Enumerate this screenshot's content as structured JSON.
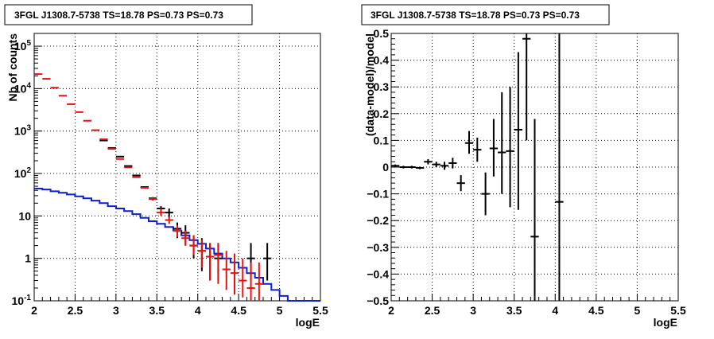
{
  "colors": {
    "data": "#000000",
    "model_total": "#e8110d",
    "model_source": "#0b20d0",
    "grid": "#000000"
  },
  "chart_data": [
    {
      "type": "line",
      "title": "3FGL J1308.7-5738 TS=18.78 PS=0.73 PS=0.73",
      "xlabel": "logE",
      "ylabel": "Nb of counts",
      "xlim": [
        2,
        5.5
      ],
      "ylim": [
        0.1,
        200000
      ],
      "log_y": true,
      "grid": true,
      "x_ticks": [
        "2",
        "2.5",
        "3",
        "3.5",
        "4",
        "4.5",
        "5",
        "5.5"
      ],
      "y_ticks": [
        {
          "base": "10",
          "exp": "-1",
          "value": 0.1
        },
        {
          "base": "1",
          "exp": "",
          "value": 1
        },
        {
          "base": "10",
          "exp": "",
          "value": 10
        },
        {
          "base": "10",
          "exp": "2",
          "value": 100
        },
        {
          "base": "10",
          "exp": "3",
          "value": 1000
        },
        {
          "base": "10",
          "exp": "4",
          "value": 10000
        },
        {
          "base": "10",
          "exp": "5",
          "value": 100000
        }
      ],
      "bin_edges": [
        2.0,
        2.1,
        2.2,
        2.3,
        2.4,
        2.5,
        2.6,
        2.7,
        2.8,
        2.9,
        3.0,
        3.1,
        3.2,
        3.3,
        3.4,
        3.5,
        3.6,
        3.7,
        3.8,
        3.9,
        4.0,
        4.1,
        4.2,
        4.3,
        4.4,
        4.5,
        4.6,
        4.7,
        4.8,
        4.9,
        5.0,
        5.1,
        5.2,
        5.3,
        5.4,
        5.5
      ],
      "series": [
        {
          "style": "errorbars",
          "color": "#e8110d",
          "x": [
            2.05,
            2.15,
            2.25,
            2.35,
            2.45,
            2.55,
            2.65,
            2.75,
            2.85,
            2.95,
            3.05,
            3.15,
            3.25,
            3.35,
            3.45,
            3.55,
            3.65,
            3.75,
            3.85,
            3.95,
            4.05,
            4.15,
            4.25,
            4.35,
            4.45,
            4.55,
            4.65,
            4.75
          ],
          "y": [
            22000,
            17000,
            10500,
            6800,
            4300,
            2800,
            1750,
            1050,
            640,
            380,
            220,
            140,
            82,
            46,
            25,
            12,
            8,
            4.5,
            3,
            2,
            1.5,
            1.1,
            1.2,
            0.55,
            0.45,
            0.3,
            0.2,
            0.25
          ],
          "y_low": [
            22000,
            17000,
            10500,
            6800,
            4300,
            2800,
            1750,
            1050,
            640,
            380,
            220,
            140,
            82,
            46,
            23,
            10,
            6.5,
            3.2,
            2,
            1.2,
            0.6,
            0.3,
            0.25,
            0.18,
            0.14,
            0.12,
            0.1,
            0.1
          ],
          "y_high": [
            22000,
            17000,
            10500,
            6800,
            4300,
            2800,
            1750,
            1050,
            640,
            380,
            220,
            140,
            82,
            46,
            28,
            15,
            10,
            6,
            4.5,
            3.5,
            2.8,
            2.3,
            2.3,
            1.5,
            1.3,
            1,
            0.8,
            0.8
          ]
        },
        {
          "style": "errorbars",
          "color": "#000000",
          "x": [
            2.85,
            2.95,
            3.05,
            3.15,
            3.25,
            3.35,
            3.45,
            3.55,
            3.65,
            3.75,
            3.85,
            3.95,
            4.05,
            4.15,
            4.25,
            4.65,
            4.85
          ],
          "y": [
            600,
            400,
            250,
            150,
            90,
            48,
            26,
            15,
            12,
            5,
            4,
            2,
            1.5,
            1.1,
            1,
            1,
            1
          ],
          "y_low": [
            600,
            400,
            250,
            150,
            90,
            48,
            24,
            13,
            9,
            3,
            2,
            1,
            0.5,
            0.3,
            0.3,
            0.3,
            0.3
          ],
          "y_high": [
            600,
            400,
            250,
            150,
            90,
            48,
            28,
            17,
            15,
            7,
            6,
            3.5,
            3,
            2.3,
            2.3,
            2.3,
            2.3
          ]
        },
        {
          "style": "step",
          "color": "#0b20d0",
          "values": [
            44,
            42,
            38,
            35,
            32,
            29,
            26,
            23,
            20,
            17,
            15,
            13,
            11,
            9,
            7.5,
            6.5,
            5.5,
            4.5,
            3.5,
            2.7,
            2.2,
            1.7,
            1.3,
            1,
            0.8,
            0.6,
            0.45,
            0.35,
            0.25,
            0.18,
            0.13,
            0.1,
            0.1,
            0.1,
            0.1
          ]
        }
      ]
    },
    {
      "type": "scatter",
      "title": "3FGL J1308.7-5738 TS=18.78 PS=0.73 PS=0.73",
      "xlabel": "logE",
      "ylabel": "(data-model)/model",
      "xlim": [
        2,
        5.5
      ],
      "ylim": [
        -0.5,
        0.5
      ],
      "grid": true,
      "x_ticks": [
        "2",
        "2.5",
        "3",
        "3.5",
        "4",
        "4.5",
        "5",
        "5.5"
      ],
      "y_ticks": [
        "0.5",
        "0.4",
        "0.3",
        "0.2",
        "0.1",
        "0",
        "−0.1",
        "−0.2",
        "−0.3",
        "−0.4",
        "−0.5"
      ],
      "series": [
        {
          "style": "errorbars",
          "color": "#000000",
          "x": [
            2.05,
            2.15,
            2.25,
            2.35,
            2.45,
            2.55,
            2.65,
            2.75,
            2.85,
            2.95,
            3.05,
            3.15,
            3.25,
            3.35,
            3.45,
            3.55,
            3.65,
            3.75,
            4.05
          ],
          "y": [
            0.005,
            0.0,
            0.0,
            -0.003,
            0.02,
            0.01,
            0.005,
            0.015,
            -0.06,
            0.09,
            0.065,
            -0.1,
            0.07,
            0.055,
            0.06,
            0.14,
            0.48,
            -0.26,
            -0.13
          ],
          "y_low": [
            0.0,
            -0.005,
            -0.005,
            -0.008,
            0.01,
            0.0,
            -0.01,
            -0.005,
            -0.09,
            0.05,
            0.02,
            -0.18,
            -0.035,
            -0.1,
            -0.15,
            -0.16,
            0.1,
            -0.5,
            -0.5
          ],
          "y_high": [
            0.01,
            0.005,
            0.005,
            0.002,
            0.03,
            0.02,
            0.02,
            0.035,
            -0.03,
            0.135,
            0.11,
            -0.02,
            0.18,
            0.28,
            0.3,
            0.43,
            0.5,
            0.18,
            0.5
          ]
        }
      ]
    }
  ]
}
